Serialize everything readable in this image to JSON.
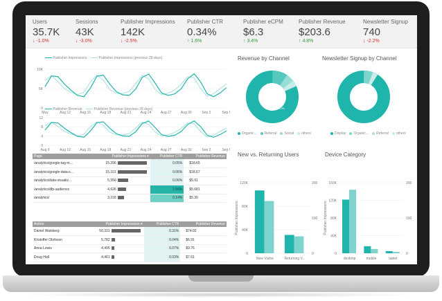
{
  "kpis": [
    {
      "label": "Users",
      "value": "35.7K",
      "change": "-1.0%",
      "dir": "down"
    },
    {
      "label": "Sessions",
      "value": "43K",
      "change": "-3.0%",
      "dir": "down"
    },
    {
      "label": "Publisher Impressions",
      "value": "142K",
      "change": "-2.5%",
      "dir": "down"
    },
    {
      "label": "Publisher CTR",
      "value": "0.34%",
      "change": "1.6%",
      "dir": "up"
    },
    {
      "label": "Publisher eCPM",
      "value": "$6.3",
      "change": "3.4%",
      "dir": "up"
    },
    {
      "label": "Publisher Revenue",
      "value": "$203.6",
      "change": "4.8%",
      "dir": "up"
    },
    {
      "label": "Newsletter Signup",
      "value": "740",
      "change": "-2.2%",
      "dir": "down"
    }
  ],
  "line_charts": {
    "impressions": {
      "legend": [
        "Publisher Impressions",
        "Publisher Impressions (previous 28 days)"
      ],
      "yticks": [
        "10K",
        "5K",
        "0"
      ],
      "xticks": [
        "May",
        "Aug 12",
        "Aug 15",
        "Aug 18",
        "Aug 21",
        "Aug 24",
        "Aug 27",
        "Aug 30",
        "Sep 2",
        "Sep 5"
      ]
    },
    "revenue": {
      "legend": [
        "Publisher Revenue",
        "Publisher Revenue (previous 28 days)"
      ],
      "yticks": [
        "12",
        "8",
        "4",
        "0"
      ],
      "xticks": [
        "Aug 9",
        "Aug 12",
        "Aug 15",
        "Aug 18",
        "Aug 21",
        "Aug 24",
        "Aug 27",
        "Aug 30",
        "Sep 2",
        "Sep 5"
      ]
    }
  },
  "donuts": {
    "revenue_by_channel": {
      "title": "Revenue by Channel",
      "label_main": "81.9%",
      "label_small": "9.3%",
      "legend": [
        "Organic...",
        "Referral",
        "Social",
        "others"
      ]
    },
    "newsletter_by_channel": {
      "title": "Newsletter Signup by Channel",
      "legend": [
        "Display",
        "Organic...",
        "Referral",
        "others"
      ]
    }
  },
  "bar_charts": {
    "new_returning": {
      "title": "New vs. Returning Users",
      "yleft": [
        "120K",
        "80K",
        "40K",
        "0"
      ],
      "yright": [
        "200",
        "100",
        "0"
      ],
      "ylabel": "Publisher Impressions",
      "categories": [
        "New Visitor",
        "Returning V..."
      ]
    },
    "device": {
      "title": "Device Category",
      "yleft": [
        "160K",
        "120K",
        "80K",
        "40K",
        "0"
      ],
      "yright": [
        "200",
        "100",
        "0"
      ],
      "ylabel": "Publisher Impressions",
      "categories": [
        "desktop",
        "mobile",
        "tablet"
      ]
    }
  },
  "pages_table": {
    "headers": [
      "Page",
      "Publisher Impressions ▾",
      "Publisher CTR",
      "Publisher Revenue"
    ],
    "rows": [
      {
        "page": "/analytics/google-tag-m...",
        "impr": "15,396",
        "ctr": "0.05%",
        "rev": "$18.65",
        "bar": 0.95,
        "hl": ""
      },
      {
        "page": "/analytics/google-data-s...",
        "impr": "15,101",
        "ctr": "0.06%",
        "rev": "$18.67",
        "bar": 0.93,
        "hl": ""
      },
      {
        "page": "/analytics/data-visualiz...",
        "impr": "5,550",
        "ctr": "0.06%",
        "rev": "$5.91",
        "bar": 0.34,
        "hl": ""
      },
      {
        "page": "/analytics/dfp-audience",
        "impr": "4,626",
        "ctr": "1.56%",
        "rev": "$5.681",
        "bar": 0.28,
        "hl": "hi"
      },
      {
        "page": "/analytics/",
        "impr": "3,318",
        "ctr": "0.14%",
        "rev": "$5.30",
        "bar": 0.2,
        "hl": "mid"
      }
    ]
  },
  "authors_table": {
    "headers": [
      "Author",
      "Publisher Impressions ▾",
      "Publisher CTR",
      "Publisher Revenue"
    ],
    "rows": [
      {
        "author": "Daniel Waisberg",
        "impr": "50,331",
        "ctr": "0.31%",
        "rev": "$74.02",
        "bar": 0.95
      },
      {
        "author": "Kristoffer Olofsson",
        "impr": "5,782",
        "ctr": "0.04%",
        "rev": "$6.91",
        "bar": 0.11
      },
      {
        "author": "Anna Lewis",
        "impr": "4,495",
        "ctr": "0.07%",
        "rev": "$9.76",
        "bar": 0.09
      },
      {
        "author": "Doug Hall",
        "impr": "4,461",
        "ctr": "0.03%",
        "rev": "$7.61",
        "bar": 0.09
      }
    ]
  },
  "colors": {
    "primary": "#1fb5ac",
    "secondary": "#7fd3cd",
    "light": "#a6e1dc",
    "lighter": "#c7ece9"
  }
}
